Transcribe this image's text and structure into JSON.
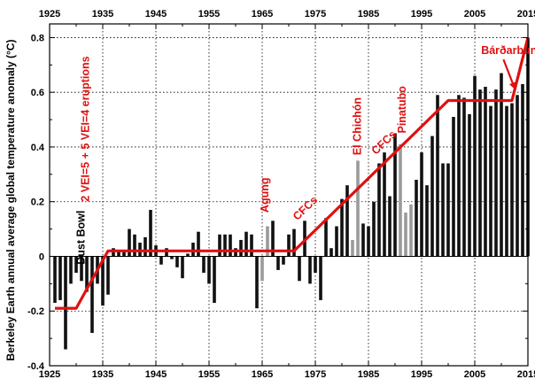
{
  "chart_data": {
    "type": "bar",
    "title": "",
    "xlabel": "",
    "ylabel": "Berkeley Earth annual average global temperature anomaly (°C)",
    "xlim": [
      1925,
      2015
    ],
    "ylim": [
      -0.4,
      0.85
    ],
    "grid": true,
    "x_ticks": [
      "1925",
      "1935",
      "1945",
      "1955",
      "1965",
      "1975",
      "1985",
      "1995",
      "2005",
      "2015"
    ],
    "y_ticks": [
      "-0.4",
      "-0.2",
      "0",
      "0.2",
      "0.4",
      "0.6",
      "0.8"
    ],
    "x_tick_values": [
      1925,
      1935,
      1945,
      1955,
      1965,
      1975,
      1985,
      1995,
      2005,
      2015
    ],
    "y_tick_values": [
      -0.4,
      -0.2,
      0,
      0.2,
      0.4,
      0.6,
      0.8
    ],
    "x": [
      1926,
      1927,
      1928,
      1929,
      1930,
      1931,
      1932,
      1933,
      1934,
      1935,
      1936,
      1937,
      1938,
      1939,
      1940,
      1941,
      1942,
      1943,
      1944,
      1945,
      1946,
      1947,
      1948,
      1949,
      1950,
      1951,
      1952,
      1953,
      1954,
      1955,
      1956,
      1957,
      1958,
      1959,
      1960,
      1961,
      1962,
      1963,
      1964,
      1965,
      1966,
      1967,
      1968,
      1969,
      1970,
      1971,
      1972,
      1973,
      1974,
      1975,
      1976,
      1977,
      1978,
      1979,
      1980,
      1981,
      1982,
      1983,
      1984,
      1985,
      1986,
      1987,
      1988,
      1989,
      1990,
      1991,
      1992,
      1993,
      1994,
      1995,
      1996,
      1997,
      1998,
      1999,
      2000,
      2001,
      2002,
      2003,
      2004,
      2005,
      2006,
      2007,
      2008,
      2009,
      2010,
      2011,
      2012,
      2013,
      2014,
      2015
    ],
    "series": [
      {
        "values": [
          -0.17,
          -0.16,
          -0.34,
          -0.1,
          -0.06,
          -0.09,
          -0.13,
          -0.28,
          -0.1,
          -0.18,
          -0.14,
          0.03,
          0.02,
          0.02,
          0.1,
          0.08,
          0.05,
          0.07,
          0.17,
          0.04,
          -0.03,
          0.03,
          -0.01,
          -0.04,
          -0.08,
          0.01,
          0.05,
          0.09,
          -0.06,
          -0.1,
          -0.17,
          0.08,
          0.08,
          0.08,
          0.03,
          0.06,
          0.09,
          0.08,
          -0.19,
          -0.09,
          0.11,
          0.13,
          -0.05,
          -0.03,
          0.08,
          0.1,
          -0.09,
          0.13,
          -0.1,
          -0.06,
          -0.16,
          0.14,
          0.03,
          0.11,
          0.21,
          0.26,
          0.06,
          0.35,
          0.12,
          0.11,
          0.2,
          0.34,
          0.38,
          0.22,
          0.45,
          0.41,
          0.16,
          0.19,
          0.28,
          0.38,
          0.26,
          0.44,
          0.59,
          0.34,
          0.34,
          0.51,
          0.59,
          0.58,
          0.52,
          0.66,
          0.61,
          0.62,
          0.55,
          0.61,
          0.67,
          0.55,
          0.56,
          0.59,
          0.63,
          0.8
        ],
        "highlight_years": [
          1965,
          1966,
          1982,
          1983,
          1991,
          1992,
          1993
        ],
        "highlight_color": "#9a9a9a",
        "color": "#111111"
      }
    ],
    "trend_line": {
      "color": "#e01010",
      "points": [
        [
          1926,
          -0.19
        ],
        [
          1930,
          -0.19
        ],
        [
          1936,
          0.02
        ],
        [
          1971,
          0.02
        ],
        [
          2000,
          0.57
        ],
        [
          2012,
          0.57
        ],
        [
          2015,
          0.8
        ]
      ]
    },
    "annotations": [
      {
        "text": "2 VEI=5 + 5 VEI=4 eruptions",
        "x": 1932.4,
        "y": 0.2,
        "rotate": -90,
        "color": "#e01010"
      },
      {
        "text": "Dust Bowl",
        "x": 1931.6,
        "y": -0.03,
        "rotate": -90,
        "color": "#000000"
      },
      {
        "text": "Agung",
        "x": 1966.2,
        "y": 0.16,
        "rotate": -90,
        "color": "#e01010"
      },
      {
        "text": "CFCs",
        "x": 1971.6,
        "y": 0.13,
        "rotate": -44,
        "color": "#e01010"
      },
      {
        "text": "CFCs",
        "x": 1986.4,
        "y": 0.37,
        "rotate": -44,
        "color": "#e01010"
      },
      {
        "text": "El Chichón",
        "x": 1983.6,
        "y": 0.37,
        "rotate": -90,
        "color": "#e01010"
      },
      {
        "text": "Pinatubo",
        "x": 1992.0,
        "y": 0.45,
        "rotate": -90,
        "color": "#e01010"
      },
      {
        "text": "Bárðarbunga",
        "x": 2006.2,
        "y": 0.74,
        "rotate": 0,
        "color": "#e01010"
      }
    ],
    "arrows": [
      {
        "from": [
          2010.4,
          0.72
        ],
        "to": [
          2012.6,
          0.61
        ],
        "color": "#e01010"
      }
    ]
  }
}
